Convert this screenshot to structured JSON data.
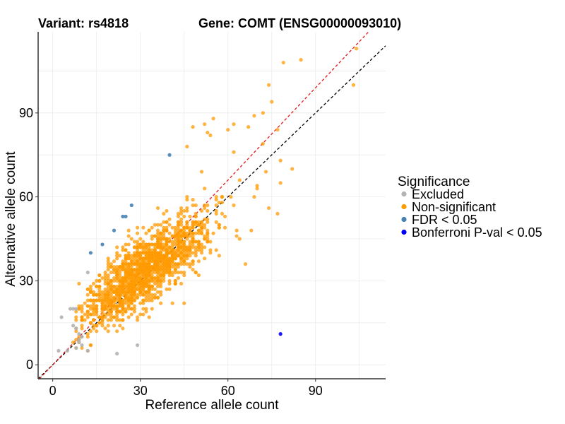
{
  "chart_data": {
    "type": "scatter",
    "title_left": "Variant: rs4818",
    "title_right": "Gene: COMT (ENSG00000093010)",
    "xlabel": "Reference allele count",
    "ylabel": "Alternative allele count",
    "xlim": [
      -5,
      114
    ],
    "ylim": [
      -5,
      119
    ],
    "xticks": [
      0,
      30,
      60,
      90
    ],
    "yticks": [
      0,
      30,
      60,
      90
    ],
    "grid": true,
    "reference_lines": [
      {
        "name": "identity",
        "color": "#000000",
        "style": "dashed",
        "slope": 1.0,
        "intercept": 0
      },
      {
        "name": "fit",
        "color": "#e31a1c",
        "style": "dashed",
        "slope": 1.1,
        "intercept": 0
      }
    ],
    "legend": {
      "title": "Significance",
      "position": "right",
      "entries": [
        {
          "label": "Excluded",
          "color": "#b3b3b3"
        },
        {
          "label": "Non-significant",
          "color": "#ff9900"
        },
        {
          "label": "FDR < 0.05",
          "color": "#4682b4"
        },
        {
          "label": "Bonferroni P-val < 0.05",
          "color": "#0000ff"
        }
      ]
    },
    "series": [
      {
        "name": "Non-significant",
        "color": "#ff9900",
        "cloud": {
          "count": 1600,
          "seed": 4818,
          "mean_x": 32,
          "mean_y": 34,
          "sd_x": 11,
          "sd_y": 10,
          "correlation": 0.8,
          "x_min": 8,
          "y_min": 6
        },
        "points": [
          [
            104,
            113
          ],
          [
            85,
            109
          ],
          [
            79,
            108
          ],
          [
            103,
            100
          ],
          [
            74,
            100
          ],
          [
            75,
            94
          ],
          [
            55,
            88
          ],
          [
            69,
            89
          ],
          [
            72,
            90
          ],
          [
            52,
            86
          ],
          [
            62,
            86
          ],
          [
            48,
            85
          ],
          [
            67,
            85
          ],
          [
            60,
            84
          ],
          [
            77,
            84
          ],
          [
            53,
            83
          ],
          [
            54,
            82
          ],
          [
            72,
            79
          ],
          [
            46,
            78
          ],
          [
            62,
            76
          ],
          [
            78,
            73
          ],
          [
            82,
            70
          ],
          [
            73,
            69
          ],
          [
            78,
            65
          ],
          [
            70,
            64
          ],
          [
            69,
            60
          ],
          [
            77,
            54
          ],
          [
            68,
            48
          ],
          [
            66,
            36
          ],
          [
            45,
            22
          ],
          [
            7,
            8
          ],
          [
            9,
            9
          ],
          [
            10,
            6
          ],
          [
            12,
            5
          ]
        ]
      },
      {
        "name": "Excluded",
        "color": "#b3b3b3",
        "points": [
          [
            2,
            5
          ],
          [
            3,
            17
          ],
          [
            5,
            5
          ],
          [
            6,
            20
          ],
          [
            7,
            20
          ],
          [
            7,
            14
          ],
          [
            8,
            20
          ],
          [
            8,
            13
          ],
          [
            9,
            11
          ],
          [
            9,
            9
          ],
          [
            9,
            8
          ],
          [
            10,
            10
          ],
          [
            10,
            7
          ],
          [
            12,
            5
          ],
          [
            12,
            33
          ],
          [
            22,
            4
          ],
          [
            29,
            7
          ],
          [
            8,
            6
          ]
        ]
      },
      {
        "name": "FDR < 0.05",
        "color": "#4682b4",
        "points": [
          [
            40,
            75
          ],
          [
            27,
            57
          ],
          [
            25,
            53
          ],
          [
            24,
            53
          ],
          [
            21,
            48
          ],
          [
            17,
            43
          ],
          [
            13,
            40
          ]
        ]
      },
      {
        "name": "Bonferroni P-val < 0.05",
        "color": "#0000ff",
        "points": [
          [
            78,
            11
          ]
        ]
      }
    ]
  }
}
